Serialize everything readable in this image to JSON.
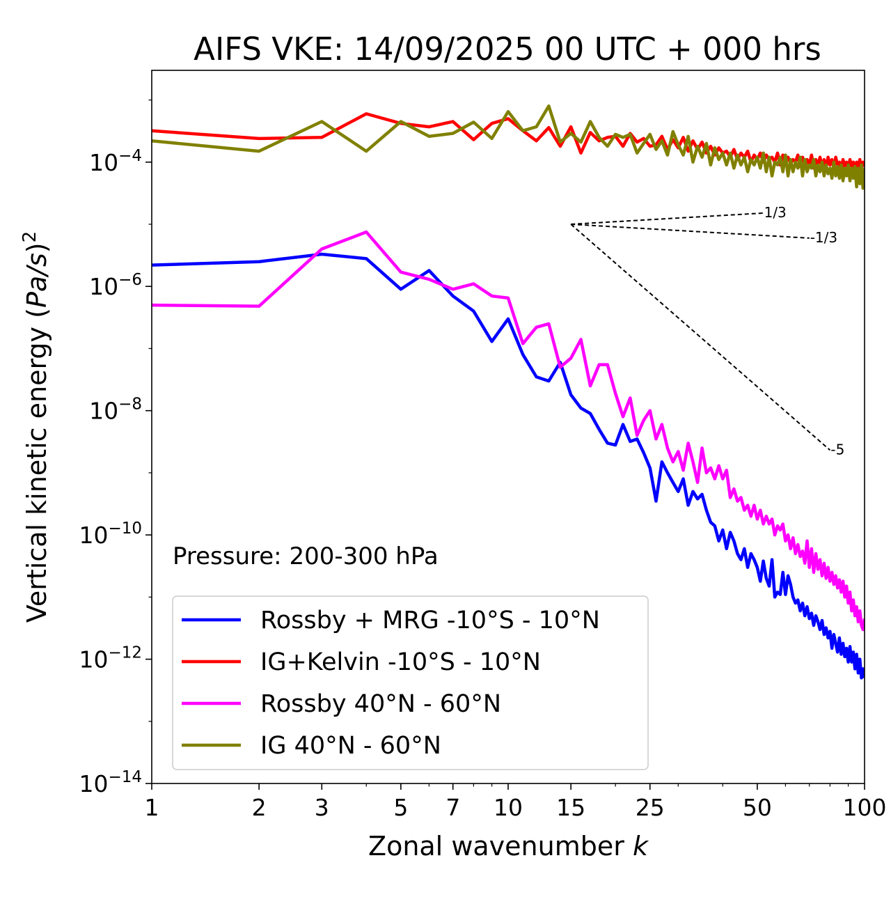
{
  "chart_data": {
    "type": "line",
    "title": "AIFS VKE: 14/09/2025 00 UTC + 000 hrs",
    "xlabel_prefix": "Zonal wavenumber ",
    "xlabel_var": "k",
    "ylabel_prefix": "Vertical kinetic energy (",
    "ylabel_var": "Pa/s",
    "ylabel_suffix": ")",
    "ylabel_sup": "2",
    "x_scale": "log",
    "y_scale": "log",
    "xlim": [
      1,
      100
    ],
    "ylim": [
      1e-14,
      0.003
    ],
    "x_ticks": [
      1,
      2,
      3,
      5,
      7,
      10,
      15,
      25,
      50,
      100
    ],
    "x_tick_labels": [
      "1",
      "2",
      "3",
      "5",
      "7",
      "10",
      "15",
      "25",
      "50",
      "100"
    ],
    "y_ticks": [
      {
        "value": 1e-14,
        "base": "10",
        "exp": "−14"
      },
      {
        "value": 1e-12,
        "base": "10",
        "exp": "−12"
      },
      {
        "value": 1e-10,
        "base": "10",
        "exp": "−10"
      },
      {
        "value": 1e-08,
        "base": "10",
        "exp": "−8"
      },
      {
        "value": 1e-06,
        "base": "10",
        "exp": "−6"
      },
      {
        "value": 0.0001,
        "base": "10",
        "exp": "−4"
      }
    ],
    "grid": false,
    "legend_position": "lower-left",
    "annotation": "Pressure: 200-300 hPa",
    "reference_slopes": [
      {
        "label": "1/3",
        "slope": 0.3333,
        "x0": 15,
        "y0": 1e-05,
        "x1": 52
      },
      {
        "label": "-1/3",
        "slope": -0.3333,
        "x0": 15,
        "y0": 1e-05,
        "x1": 70
      },
      {
        "label": "-5",
        "slope": -5,
        "x0": 15,
        "y0": 1e-05,
        "x1": 80
      }
    ],
    "series": [
      {
        "name": "Rossby + MRG -10°S - 10°N",
        "color": "#0000ff",
        "x": [
          1,
          2,
          3,
          4,
          5,
          6,
          7,
          8,
          9,
          10,
          11,
          12,
          13,
          14,
          15,
          16,
          17,
          18,
          19,
          20,
          21,
          22,
          23,
          24,
          25,
          26,
          27,
          28,
          29,
          30,
          31,
          32,
          33,
          34,
          35,
          36,
          37,
          38,
          39,
          40,
          41,
          42,
          43,
          44,
          45,
          46,
          47,
          48,
          49,
          50,
          51,
          52,
          53,
          54,
          55,
          56,
          57,
          58,
          59,
          60,
          61,
          62,
          63,
          64,
          65,
          66,
          67,
          68,
          69,
          70,
          71,
          72,
          73,
          74,
          75,
          76,
          77,
          78,
          79,
          80,
          81,
          82,
          83,
          84,
          85,
          86,
          87,
          88,
          89,
          90,
          91,
          92,
          93,
          94,
          95,
          96,
          97,
          98,
          99,
          100
        ],
        "y": [
          2.2e-06,
          2.5e-06,
          3.3e-06,
          2.8e-06,
          9e-07,
          1.8e-06,
          7e-07,
          4e-07,
          1.3e-07,
          3e-07,
          8e-08,
          3.5e-08,
          3e-08,
          6e-08,
          1.8e-08,
          1.1e-08,
          9e-09,
          5e-09,
          3e-09,
          2.8e-09,
          6e-09,
          3.2e-09,
          3.5e-09,
          2.1e-09,
          1.2e-09,
          3.5e-10,
          1.5e-09,
          1e-09,
          7e-10,
          5e-10,
          8e-10,
          3e-10,
          5e-10,
          3.8e-10,
          4.5e-10,
          2.5e-10,
          1.6e-10,
          1.4e-10,
          8e-11,
          1.2e-10,
          6e-11,
          1.1e-10,
          8e-11,
          5e-11,
          4e-11,
          6e-11,
          3e-11,
          5e-11,
          4e-11,
          3e-11,
          1.8e-11,
          3.8e-11,
          2e-11,
          1.5e-11,
          4e-11,
          1e-11,
          1.2e-11,
          1.1e-11,
          2.5e-11,
          1.1e-11,
          2.2e-11,
          1.6e-11,
          1e-11,
          8e-12,
          9e-12,
          6e-12,
          8e-12,
          5e-12,
          7e-12,
          4.5e-12,
          5.5e-12,
          3.5e-12,
          5e-12,
          4e-12,
          3e-12,
          4.2e-12,
          2.5e-12,
          3.2e-12,
          2.2e-12,
          2.8e-12,
          1.5e-12,
          2.5e-12,
          1.8e-12,
          1.3e-12,
          2.2e-12,
          1.2e-12,
          1.8e-12,
          1.1e-12,
          1.5e-12,
          9e-13,
          1.6e-12,
          9e-13,
          1.3e-12,
          7e-13,
          1.2e-12,
          6e-13,
          1e-12,
          5e-13,
          7e-13,
          5e-13
        ]
      },
      {
        "name": "IG+Kelvin -10°S - 10°N",
        "color": "#ff0000",
        "x": [
          1,
          2,
          3,
          4,
          5,
          6,
          7,
          8,
          9,
          10,
          11,
          12,
          13,
          14,
          15,
          16,
          17,
          18,
          19,
          20,
          21,
          22,
          23,
          24,
          25,
          26,
          27,
          28,
          29,
          30,
          31,
          32,
          33,
          34,
          35,
          36,
          37,
          38,
          39,
          40,
          41,
          42,
          43,
          44,
          45,
          46,
          47,
          48,
          49,
          50,
          51,
          52,
          53,
          54,
          55,
          56,
          57,
          58,
          59,
          60,
          61,
          62,
          63,
          64,
          65,
          66,
          67,
          68,
          69,
          70,
          71,
          72,
          73,
          74,
          75,
          76,
          77,
          78,
          79,
          80,
          81,
          82,
          83,
          84,
          85,
          86,
          87,
          88,
          89,
          90,
          91,
          92,
          93,
          94,
          95,
          96,
          97,
          98,
          99,
          100
        ],
        "y": [
          0.00032,
          0.00024,
          0.00025,
          0.0006,
          0.00042,
          0.00037,
          0.00045,
          0.00023,
          0.00042,
          0.0005,
          0.00032,
          0.00022,
          0.00036,
          0.00018,
          0.00037,
          0.00014,
          0.0003,
          0.00022,
          0.00025,
          0.00026,
          0.00018,
          0.00029,
          0.00021,
          0.00024,
          0.00018,
          0.00019,
          0.00026,
          0.00016,
          0.00023,
          0.00017,
          0.00025,
          0.00015,
          0.00022,
          0.00016,
          0.00021,
          0.00014,
          0.00018,
          0.00013,
          0.00017,
          0.00014,
          0.00015,
          0.00012,
          0.00016,
          0.00011,
          0.00014,
          0.00012,
          0.00015,
          0.0001,
          0.00013,
          0.00011,
          0.00014,
          0.0001,
          0.00013,
          0.00011,
          0.00012,
          0.0001,
          0.00014,
          9e-05,
          0.00013,
          0.0001,
          0.00012,
          9.5e-05,
          0.00011,
          0.0001,
          0.00013,
          8.5e-05,
          0.00012,
          9.5e-05,
          0.00011,
          9e-05,
          0.00013,
          8e-05,
          0.00011,
          9e-05,
          0.00012,
          8.5e-05,
          0.00011,
          8e-05,
          0.00012,
          9e-05,
          0.00011,
          8e-05,
          0.00012,
          9e-05,
          0.0001,
          7.5e-05,
          0.00011,
          8.5e-05,
          0.0001,
          8e-05,
          0.00011,
          8.5e-05,
          0.0001,
          7.5e-05,
          0.0001,
          8e-05,
          0.00011,
          7.5e-05,
          0.0001,
          8.5e-05
        ]
      },
      {
        "name": "Rossby 40°N - 60°N",
        "color": "#ff00ff",
        "x": [
          1,
          2,
          3,
          4,
          5,
          6,
          7,
          8,
          9,
          10,
          11,
          12,
          13,
          14,
          15,
          16,
          17,
          18,
          19,
          20,
          21,
          22,
          23,
          24,
          25,
          26,
          27,
          28,
          29,
          30,
          31,
          32,
          33,
          34,
          35,
          36,
          37,
          38,
          39,
          40,
          41,
          42,
          43,
          44,
          45,
          46,
          47,
          48,
          49,
          50,
          51,
          52,
          53,
          54,
          55,
          56,
          57,
          58,
          59,
          60,
          61,
          62,
          63,
          64,
          65,
          66,
          67,
          68,
          69,
          70,
          71,
          72,
          73,
          74,
          75,
          76,
          77,
          78,
          79,
          80,
          81,
          82,
          83,
          84,
          85,
          86,
          87,
          88,
          89,
          90,
          91,
          92,
          93,
          94,
          95,
          96,
          97,
          98,
          99,
          100
        ],
        "y": [
          5e-07,
          4.8e-07,
          4e-06,
          7.5e-06,
          1.7e-06,
          1.3e-06,
          9e-07,
          1.1e-06,
          7e-07,
          6.5e-07,
          1.2e-07,
          2.2e-07,
          2.5e-07,
          5e-08,
          7e-08,
          1.4e-07,
          2.5e-08,
          5.5e-08,
          5.5e-08,
          1.9e-08,
          8e-09,
          1.6e-08,
          4e-09,
          7e-09,
          1e-08,
          3.5e-09,
          6e-09,
          2.5e-09,
          1.5e-09,
          2.2e-09,
          1.1e-09,
          3e-09,
          1.5e-09,
          7e-10,
          2.5e-09,
          1e-09,
          1.2e-09,
          8e-10,
          1.3e-09,
          8e-10,
          1.1e-09,
          4e-10,
          5.5e-10,
          3.5e-10,
          4e-10,
          2.5e-10,
          3e-10,
          2e-10,
          3e-10,
          1.8e-10,
          2.5e-10,
          1.5e-10,
          2e-10,
          1.5e-10,
          1.8e-10,
          1e-10,
          1.4e-10,
          1.2e-10,
          1.5e-10,
          8e-11,
          1e-10,
          6e-11,
          9e-11,
          5e-11,
          7e-11,
          4.5e-11,
          5.5e-11,
          3.5e-11,
          8e-11,
          3e-11,
          6e-11,
          2.5e-11,
          5e-11,
          2.8e-11,
          4e-11,
          2.2e-11,
          3.5e-11,
          2e-11,
          3e-11,
          1.8e-11,
          2.5e-11,
          1.6e-11,
          2.2e-11,
          1.4e-11,
          1.9e-11,
          1.2e-11,
          1.8e-11,
          1e-11,
          1.5e-11,
          8e-12,
          1.2e-11,
          6e-12,
          9e-12,
          5e-12,
          7e-12,
          4e-12,
          6e-12,
          3.5e-12,
          3e-12,
          4.5e-12
        ]
      },
      {
        "name": "IG 40°N - 60°N",
        "color": "#808000",
        "x": [
          1,
          2,
          3,
          4,
          5,
          6,
          7,
          8,
          9,
          10,
          11,
          12,
          13,
          14,
          15,
          16,
          17,
          18,
          19,
          20,
          21,
          22,
          23,
          24,
          25,
          26,
          27,
          28,
          29,
          30,
          31,
          32,
          33,
          34,
          35,
          36,
          37,
          38,
          39,
          40,
          41,
          42,
          43,
          44,
          45,
          46,
          47,
          48,
          49,
          50,
          51,
          52,
          53,
          54,
          55,
          56,
          57,
          58,
          59,
          60,
          61,
          62,
          63,
          64,
          65,
          66,
          67,
          68,
          69,
          70,
          71,
          72,
          73,
          74,
          75,
          76,
          77,
          78,
          79,
          80,
          81,
          82,
          83,
          84,
          85,
          86,
          87,
          88,
          89,
          90,
          91,
          92,
          93,
          94,
          95,
          96,
          97,
          98,
          99,
          100
        ],
        "y": [
          0.00022,
          0.00015,
          0.00045,
          0.00015,
          0.00045,
          0.00026,
          0.00029,
          0.00044,
          0.00024,
          0.00065,
          0.00032,
          0.00037,
          0.0008,
          0.00021,
          0.00029,
          0.00021,
          0.00045,
          0.00025,
          0.00018,
          0.00028,
          0.00025,
          0.00028,
          0.00014,
          0.0002,
          0.00028,
          0.00016,
          0.00022,
          0.00013,
          0.00031,
          0.00019,
          0.00013,
          0.00026,
          0.0001,
          0.00018,
          0.00012,
          0.0002,
          9e-05,
          0.00017,
          0.00011,
          0.00014,
          9e-05,
          0.00014,
          8e-05,
          0.00013,
          9e-05,
          0.00012,
          7e-05,
          0.00011,
          9e-05,
          0.00012,
          8e-05,
          0.00014,
          7e-05,
          0.00012,
          6e-05,
          0.0001,
          9e-05,
          0.00012,
          7e-05,
          0.00013,
          6e-05,
          0.00011,
          7e-05,
          0.0001,
          8e-05,
          0.00012,
          6e-05,
          0.00011,
          7e-05,
          9e-05,
          8e-05,
          0.00011,
          6e-05,
          9e-05,
          7e-05,
          0.0001,
          6e-05,
          9e-05,
          6.5e-05,
          8e-05,
          5.5e-05,
          0.0001,
          6e-05,
          8.5e-05,
          5.5e-05,
          9e-05,
          5e-05,
          8e-05,
          6e-05,
          9e-05,
          5e-05,
          8e-05,
          5.5e-05,
          8.5e-05,
          4e-05,
          8e-05,
          4.5e-05,
          9e-05,
          3.8e-05,
          8e-05
        ]
      }
    ]
  }
}
